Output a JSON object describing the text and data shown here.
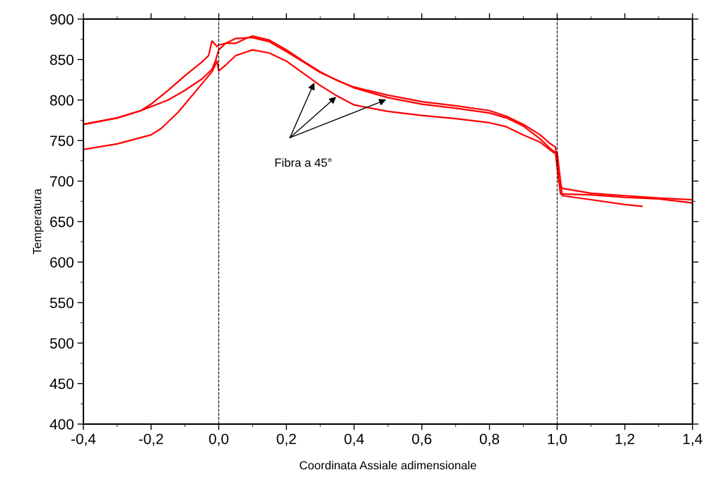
{
  "chart_data": {
    "type": "line",
    "xlabel": "Coordinata Assiale adimensionale",
    "ylabel": "Temperatura",
    "xlim": [
      -0.4,
      1.4
    ],
    "ylim": [
      400,
      900
    ],
    "xticks": [
      {
        "value": -0.4,
        "label": "-0,4"
      },
      {
        "value": -0.2,
        "label": "-0,2"
      },
      {
        "value": 0,
        "label": "0,0"
      },
      {
        "value": 0.2,
        "label": "0,2"
      },
      {
        "value": 0.4,
        "label": "0,4"
      },
      {
        "value": 0.6,
        "label": "0,6"
      },
      {
        "value": 0.8,
        "label": "0,8"
      },
      {
        "value": 1.0,
        "label": "1,0"
      },
      {
        "value": 1.2,
        "label": "1,2"
      },
      {
        "value": 1.4,
        "label": "1,4"
      }
    ],
    "yticks": [
      400,
      450,
      500,
      550,
      600,
      650,
      700,
      750,
      800,
      850,
      900
    ],
    "grid": false,
    "line_style": "solid",
    "ref_lines": [
      {
        "axis": "x",
        "value": 0,
        "color": "#000000",
        "line_style": "dashed"
      },
      {
        "axis": "x",
        "value": 1,
        "color": "#000000",
        "line_style": "dashed"
      }
    ],
    "annotations": [
      "Fibra a 45°"
    ],
    "series": [
      {
        "color": "#ff0000",
        "x": [
          -0.4,
          -0.3,
          -0.23,
          -0.2,
          -0.15,
          -0.1,
          -0.05,
          -0.03,
          -0.02,
          -0.005,
          0.0,
          0.02,
          0.05,
          0.08,
          0.1,
          0.15,
          0.2,
          0.25,
          0.3,
          0.35,
          0.4,
          0.5,
          0.6,
          0.7,
          0.8,
          0.85,
          0.9,
          0.95,
          0.98,
          0.995,
          1.005,
          1.01,
          1.1,
          1.2,
          1.3,
          1.4
        ],
        "values": [
          770,
          778,
          787,
          795,
          812,
          830,
          847,
          855,
          873,
          866,
          868,
          870,
          870,
          876,
          879,
          874,
          862,
          848,
          835,
          824,
          816,
          806,
          798,
          793,
          787,
          780,
          770,
          757,
          746,
          742,
          700,
          684,
          683,
          680,
          678,
          673
        ]
      },
      {
        "color": "#ff0000",
        "x": [
          -0.4,
          -0.3,
          -0.23,
          -0.15,
          -0.1,
          -0.05,
          -0.02,
          -0.01,
          0.0,
          0.02,
          0.05,
          0.09,
          0.1,
          0.15,
          0.2,
          0.25,
          0.3,
          0.4,
          0.5,
          0.6,
          0.7,
          0.8,
          0.85,
          0.9,
          0.95,
          0.98,
          0.995,
          1.005,
          1.015,
          1.1,
          1.2,
          1.3,
          1.4
        ],
        "values": [
          770,
          778,
          787,
          800,
          812,
          826,
          838,
          848,
          862,
          870,
          876,
          877,
          877,
          872,
          860,
          847,
          834,
          815,
          803,
          795,
          790,
          784,
          778,
          768,
          752,
          740,
          735,
          700,
          691,
          685,
          682,
          679,
          677
        ]
      },
      {
        "color": "#ff0000",
        "x": [
          -0.4,
          -0.3,
          -0.2,
          -0.17,
          -0.12,
          -0.06,
          -0.02,
          -0.005,
          0.0,
          0.02,
          0.05,
          0.1,
          0.15,
          0.2,
          0.25,
          0.3,
          0.35,
          0.4,
          0.5,
          0.6,
          0.7,
          0.8,
          0.85,
          0.9,
          0.95,
          0.99,
          1.0,
          1.015,
          1.1,
          1.2,
          1.25
        ],
        "values": [
          739,
          746,
          757,
          765,
          785,
          815,
          835,
          848,
          836,
          843,
          855,
          862,
          858,
          848,
          833,
          818,
          805,
          794,
          786,
          781,
          777,
          772,
          767,
          757,
          748,
          735,
          735,
          682,
          677,
          671,
          669
        ]
      }
    ]
  }
}
